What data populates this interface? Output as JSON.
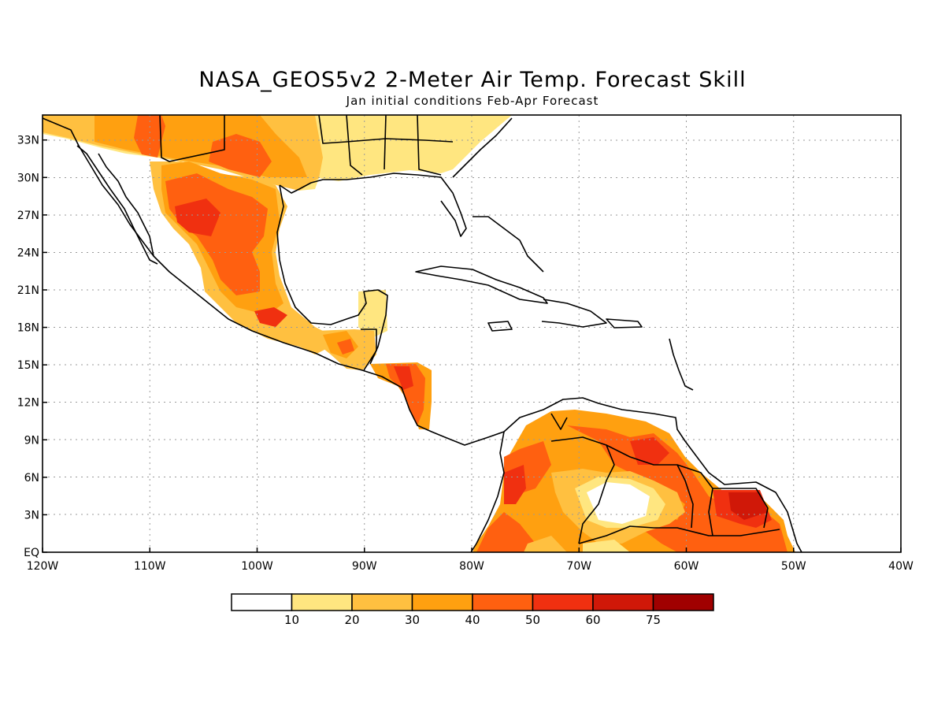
{
  "title": "NASA_GEOS5v2 2-Meter Air Temp. Forecast Skill",
  "subtitle": "Jan initial conditions  Feb-Apr Forecast",
  "lat_labels": [
    "33N",
    "30N",
    "27N",
    "24N",
    "21N",
    "18N",
    "15N",
    "12N",
    "9N",
    "6N",
    "3N",
    "EQ"
  ],
  "lon_labels": [
    "120W",
    "110W",
    "100W",
    "90W",
    "80W",
    "70W",
    "60W",
    "50W",
    "40W"
  ],
  "colorbar": {
    "colors": [
      "#ffffff",
      "#ffe680",
      "#ffc040",
      "#ffa010",
      "#ff6010",
      "#f03010",
      "#d01808",
      "#a00000"
    ],
    "labels": [
      "10",
      "20",
      "30",
      "40",
      "50",
      "60",
      "75"
    ]
  },
  "chart_data": {
    "type": "heatmap",
    "title": "NASA_GEOS5v2 2-Meter Air Temp. Forecast Skill",
    "subtitle": "Jan initial conditions  Feb-Apr Forecast",
    "x_range": [
      "120W",
      "40W"
    ],
    "y_range": [
      "EQ",
      "35N"
    ],
    "grid": true,
    "legend": "bottom",
    "levels": [
      10,
      20,
      30,
      40,
      50,
      60,
      75
    ]
  }
}
